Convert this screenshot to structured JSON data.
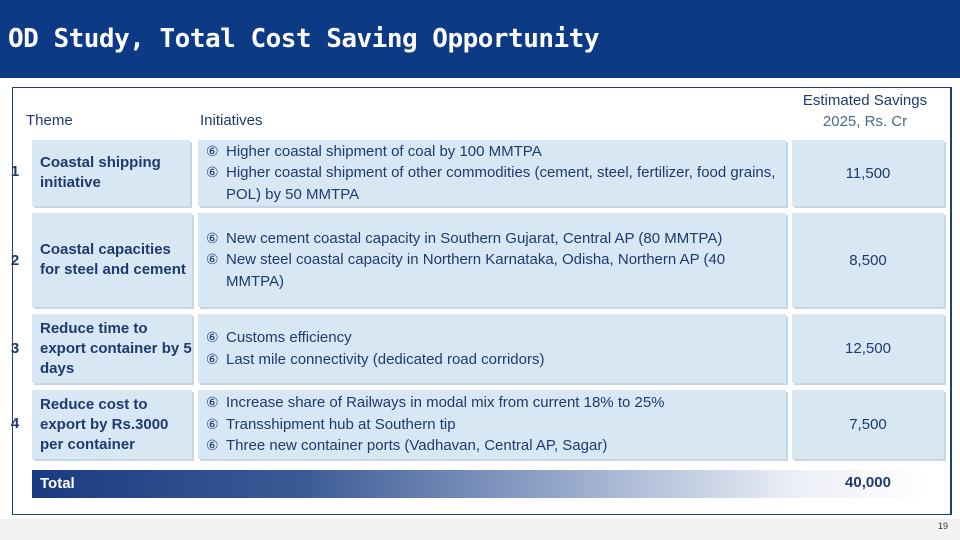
{
  "page": {
    "title": "OD Study, Total Cost Saving Opportunity",
    "page_number": "19"
  },
  "headers": {
    "theme": "Theme",
    "initiatives": "Initiatives",
    "savings_line1": "Estimated Savings",
    "savings_line2": "2025, Rs. Cr"
  },
  "bullet_icon": "circled-six-bullet",
  "bullet_glyph": "⑥",
  "rows": [
    {
      "number": "1",
      "theme": "Coastal shipping initiative",
      "initiatives": [
        "Higher coastal shipment of coal by 100 MMTPA",
        "Higher coastal shipment of other commodities (cement, steel, fertilizer, food grains, POL) by 50 MMTPA"
      ],
      "savings": "11,500"
    },
    {
      "number": "2",
      "theme": "Coastal capacities for steel and cement",
      "initiatives": [
        "New cement coastal capacity in Southern Gujarat, Central AP (80 MMTPA)",
        "New steel coastal capacity in Northern Karnataka, Odisha, Northern AP (40 MMTPA)"
      ],
      "savings": "8,500"
    },
    {
      "number": "3",
      "theme": "Reduce time to export container by 5 days",
      "initiatives": [
        "Customs efficiency",
        "Last mile connectivity (dedicated road corridors)"
      ],
      "savings": "12,500"
    },
    {
      "number": "4",
      "theme": "Reduce cost to export by Rs.3000 per container",
      "initiatives": [
        "Increase share of Railways in modal mix from current 18% to 25%",
        "Transshipment hub at Southern tip",
        "Three new container ports (Vadhavan, Central AP, Sagar)"
      ],
      "savings": "7,500"
    }
  ],
  "total": {
    "label": "Total",
    "value": "40,000"
  },
  "colors": {
    "title_bar": "#0d3a84",
    "row_fill": "#d7e7f4",
    "text_dark_blue": "#1f3a6e"
  }
}
